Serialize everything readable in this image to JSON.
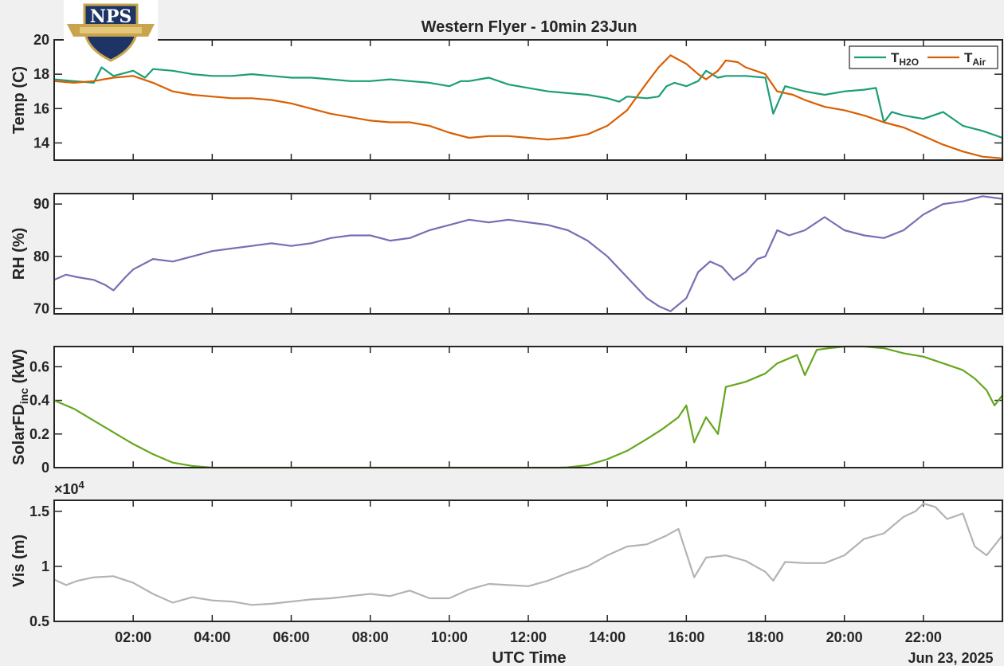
{
  "title": "Western Flyer - 10min 23Jun",
  "logo_text": "NPS",
  "colors": {
    "t_h2o": "#1b9e77",
    "t_air": "#d95f02",
    "rh": "#7570b3",
    "solar": "#66a61e",
    "vis": "#b3b3b3"
  },
  "xaxis": {
    "label": "UTC Time",
    "date_label": "Jun 23, 2025",
    "range_hours": [
      0,
      24
    ],
    "ticks": [
      2,
      4,
      6,
      8,
      10,
      12,
      14,
      16,
      18,
      20,
      22
    ],
    "tick_labels": [
      "02:00",
      "04:00",
      "06:00",
      "08:00",
      "10:00",
      "12:00",
      "14:00",
      "16:00",
      "18:00",
      "20:00",
      "22:00"
    ]
  },
  "chart_data": [
    {
      "type": "line",
      "ylabel": "Temp (C)",
      "ylim": [
        13,
        20
      ],
      "yticks": [
        14,
        16,
        18,
        20
      ],
      "legend": "top-right",
      "series": [
        {
          "name": "T",
          "sub": "H2O",
          "key": "t_h2o",
          "x": [
            0,
            0.5,
            1,
            1.2,
            1.5,
            2,
            2.3,
            2.5,
            3,
            3.5,
            4,
            4.5,
            5,
            5.5,
            6,
            6.5,
            7,
            7.5,
            8,
            8.5,
            9,
            9.5,
            10,
            10.3,
            10.5,
            11,
            11.5,
            12,
            12.5,
            13,
            13.5,
            14,
            14.3,
            14.5,
            15,
            15.3,
            15.5,
            15.7,
            16,
            16.3,
            16.5,
            16.8,
            17,
            17.5,
            18,
            18.2,
            18.5,
            19,
            19.5,
            20,
            20.5,
            20.8,
            21,
            21.2,
            21.5,
            22,
            22.5,
            23,
            23.5,
            24
          ],
          "y": [
            17.7,
            17.6,
            17.5,
            18.4,
            17.9,
            18.2,
            17.8,
            18.3,
            18.2,
            18.0,
            17.9,
            17.9,
            18.0,
            17.9,
            17.8,
            17.8,
            17.7,
            17.6,
            17.6,
            17.7,
            17.6,
            17.5,
            17.3,
            17.6,
            17.6,
            17.8,
            17.4,
            17.2,
            17.0,
            16.9,
            16.8,
            16.6,
            16.4,
            16.7,
            16.6,
            16.7,
            17.3,
            17.5,
            17.3,
            17.6,
            18.2,
            17.8,
            17.9,
            17.9,
            17.8,
            15.7,
            17.3,
            17.0,
            16.8,
            17.0,
            17.1,
            17.2,
            15.2,
            15.8,
            15.6,
            15.4,
            15.8,
            15.0,
            14.7,
            14.3
          ]
        },
        {
          "name": "T",
          "sub": "Air",
          "key": "t_air",
          "x": [
            0,
            0.5,
            1,
            1.5,
            2,
            2.5,
            3,
            3.5,
            4,
            4.5,
            5,
            5.5,
            6,
            6.5,
            7,
            7.5,
            8,
            8.5,
            9,
            9.5,
            10,
            10.5,
            11,
            11.5,
            12,
            12.5,
            13,
            13.5,
            14,
            14.5,
            15,
            15.3,
            15.6,
            16,
            16.3,
            16.5,
            16.8,
            17,
            17.3,
            17.5,
            18,
            18.3,
            18.7,
            19,
            19.5,
            20,
            20.5,
            21,
            21.5,
            22,
            22.5,
            23,
            23.5,
            24
          ],
          "y": [
            17.6,
            17.5,
            17.6,
            17.8,
            17.9,
            17.5,
            17.0,
            16.8,
            16.7,
            16.6,
            16.6,
            16.5,
            16.3,
            16.0,
            15.7,
            15.5,
            15.3,
            15.2,
            15.2,
            15.0,
            14.6,
            14.3,
            14.4,
            14.4,
            14.3,
            14.2,
            14.3,
            14.5,
            15.0,
            15.9,
            17.5,
            18.4,
            19.1,
            18.6,
            18.0,
            17.7,
            18.2,
            18.8,
            18.7,
            18.4,
            18.0,
            17.0,
            16.8,
            16.5,
            16.1,
            15.9,
            15.6,
            15.2,
            14.9,
            14.4,
            13.9,
            13.5,
            13.2,
            13.1
          ]
        }
      ]
    },
    {
      "type": "line",
      "ylabel": "RH (%)",
      "ylim": [
        69,
        92
      ],
      "yticks": [
        70,
        80,
        90
      ],
      "series": [
        {
          "key": "rh",
          "x": [
            0,
            0.3,
            0.6,
            1,
            1.3,
            1.5,
            1.8,
            2,
            2.5,
            3,
            3.5,
            4,
            4.5,
            5,
            5.5,
            6,
            6.5,
            7,
            7.5,
            8,
            8.5,
            9,
            9.5,
            10,
            10.5,
            11,
            11.5,
            12,
            12.5,
            13,
            13.5,
            14,
            14.5,
            15,
            15.3,
            15.6,
            16,
            16.3,
            16.6,
            16.9,
            17.2,
            17.5,
            17.8,
            18,
            18.3,
            18.6,
            19,
            19.5,
            20,
            20.5,
            21,
            21.5,
            22,
            22.5,
            23,
            23.5,
            24
          ],
          "y": [
            75.5,
            76.5,
            76.0,
            75.5,
            74.5,
            73.5,
            76.0,
            77.5,
            79.5,
            79.0,
            80.0,
            81.0,
            81.5,
            82.0,
            82.5,
            82.0,
            82.5,
            83.5,
            84.0,
            84.0,
            83.0,
            83.5,
            85.0,
            86.0,
            87.0,
            86.5,
            87.0,
            86.5,
            86.0,
            85.0,
            83.0,
            80.0,
            76.0,
            72.0,
            70.5,
            69.5,
            72.0,
            77.0,
            79.0,
            78.0,
            75.5,
            77.0,
            79.5,
            80.0,
            85.0,
            84.0,
            85.0,
            87.5,
            85.0,
            84.0,
            83.5,
            85.0,
            88.0,
            90.0,
            90.5,
            91.5,
            91.0
          ]
        }
      ]
    },
    {
      "type": "line",
      "ylabel": "SolarFD",
      "ylabel_sub": "inc",
      "ylabel_unit": "(kW)",
      "ylim": [
        0,
        0.72
      ],
      "yticks": [
        0,
        0.2,
        0.4,
        0.6
      ],
      "ytick_labels": [
        "0",
        "0.2",
        "0.4",
        "0.6"
      ],
      "series": [
        {
          "key": "solar",
          "x": [
            0,
            0.5,
            1,
            1.5,
            2,
            2.5,
            3,
            3.5,
            4,
            6,
            8,
            10,
            12,
            12.8,
            13,
            13.5,
            14,
            14.5,
            15,
            15.4,
            15.8,
            16,
            16.2,
            16.5,
            16.8,
            17,
            17.5,
            18,
            18.3,
            18.6,
            18.8,
            19,
            19.3,
            19.6,
            20,
            20.5,
            21,
            21.5,
            22,
            22.5,
            23,
            23.3,
            23.6,
            23.8,
            24
          ],
          "y": [
            0.4,
            0.35,
            0.28,
            0.21,
            0.14,
            0.08,
            0.03,
            0.01,
            0,
            0,
            0,
            0,
            0,
            0,
            0.002,
            0.015,
            0.05,
            0.1,
            0.17,
            0.23,
            0.3,
            0.37,
            0.15,
            0.3,
            0.2,
            0.48,
            0.51,
            0.56,
            0.62,
            0.65,
            0.67,
            0.55,
            0.7,
            0.71,
            0.72,
            0.72,
            0.71,
            0.68,
            0.66,
            0.62,
            0.58,
            0.53,
            0.46,
            0.37,
            0.43
          ]
        }
      ]
    },
    {
      "type": "line",
      "ylabel": "Vis (m)",
      "ylim": [
        5000,
        16000
      ],
      "yticks": [
        5000,
        10000,
        15000
      ],
      "ytick_labels": [
        "0.5",
        "1",
        "1.5"
      ],
      "exponent_label": "×10",
      "exponent_power": "4",
      "series": [
        {
          "key": "vis",
          "x": [
            0,
            0.3,
            0.6,
            1,
            1.5,
            2,
            2.5,
            3,
            3.5,
            4,
            4.5,
            5,
            5.5,
            6,
            6.5,
            7,
            7.5,
            8,
            8.5,
            9,
            9.5,
            10,
            10.5,
            11,
            11.5,
            12,
            12.5,
            13,
            13.5,
            14,
            14.5,
            15,
            15.5,
            15.8,
            16.2,
            16.5,
            17,
            17.5,
            18,
            18.2,
            18.5,
            19,
            19.5,
            20,
            20.5,
            21,
            21.5,
            21.8,
            22,
            22.3,
            22.6,
            23,
            23.3,
            23.6,
            24
          ],
          "y": [
            8800,
            8300,
            8700,
            9000,
            9100,
            8500,
            7500,
            6700,
            7200,
            6900,
            6800,
            6500,
            6600,
            6800,
            7000,
            7100,
            7300,
            7500,
            7300,
            7800,
            7100,
            7100,
            7900,
            8400,
            8300,
            8200,
            8700,
            9400,
            10000,
            11000,
            11800,
            12000,
            12800,
            13400,
            9000,
            10800,
            11000,
            10500,
            9500,
            8700,
            10400,
            10300,
            10300,
            11000,
            12500,
            13000,
            14500,
            15000,
            15700,
            15400,
            14300,
            14800,
            11800,
            11000,
            12800
          ]
        }
      ]
    }
  ]
}
